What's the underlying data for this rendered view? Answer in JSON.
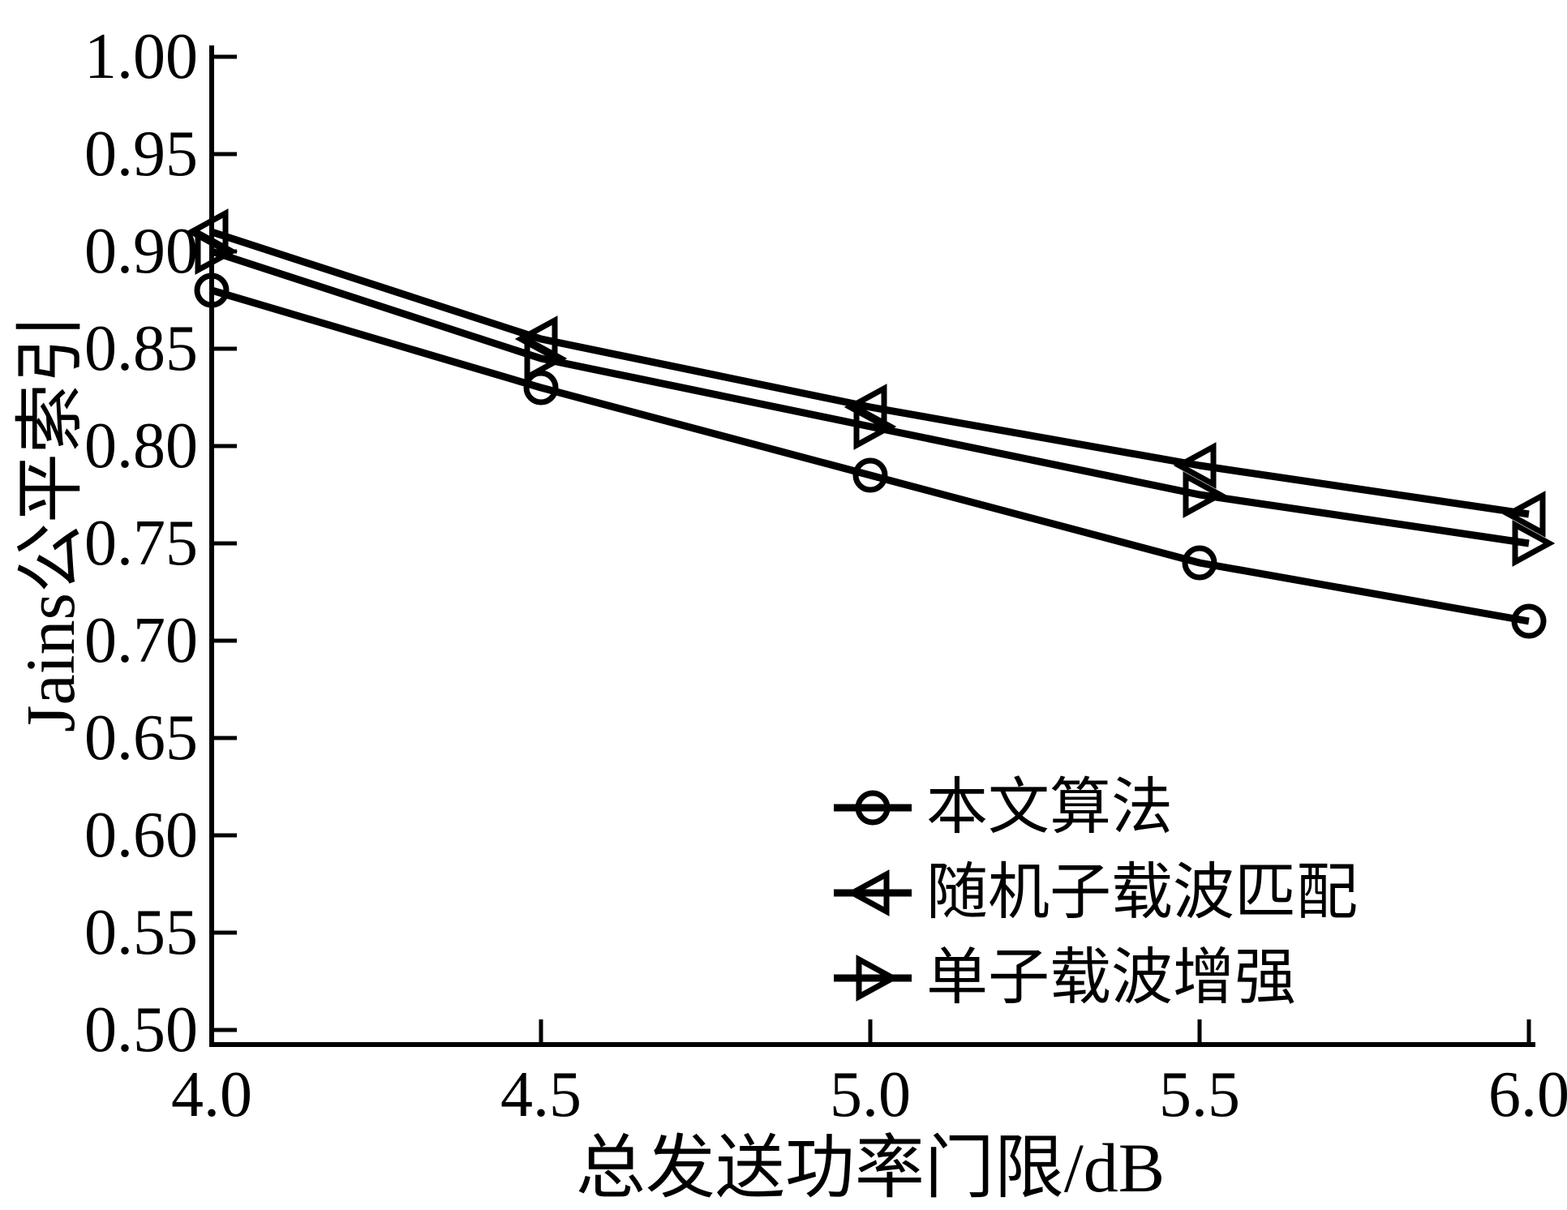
{
  "chart_data": {
    "type": "line",
    "title": "",
    "xlabel": "总发送功率门限/dB",
    "ylabel": "Jains公平索引",
    "x": [
      4.0,
      4.5,
      5.0,
      5.5,
      6.0
    ],
    "xlim": [
      4.0,
      6.0
    ],
    "ylim": [
      0.5,
      1.0
    ],
    "x_ticks": [
      "4.0",
      "4.5",
      "5.0",
      "5.5",
      "6.0"
    ],
    "y_ticks": [
      "1.00",
      "0.95",
      "0.90",
      "0.85",
      "0.80",
      "0.75",
      "0.70",
      "0.65",
      "0.60",
      "0.55",
      "0.50"
    ],
    "grid": false,
    "legend_position": "inside-lower-right",
    "series": [
      {
        "name": "本文算法",
        "marker": "circle",
        "values": [
          0.88,
          0.83,
          0.785,
          0.74,
          0.71
        ]
      },
      {
        "name": "随机子载波匹配",
        "marker": "triangle-left",
        "values": [
          0.91,
          0.855,
          0.82,
          0.79,
          0.765
        ]
      },
      {
        "name": "单子载波增强",
        "marker": "triangle-right",
        "values": [
          0.9,
          0.845,
          0.81,
          0.775,
          0.75
        ]
      }
    ],
    "line_color": "#000000",
    "background": "#ffffff"
  }
}
